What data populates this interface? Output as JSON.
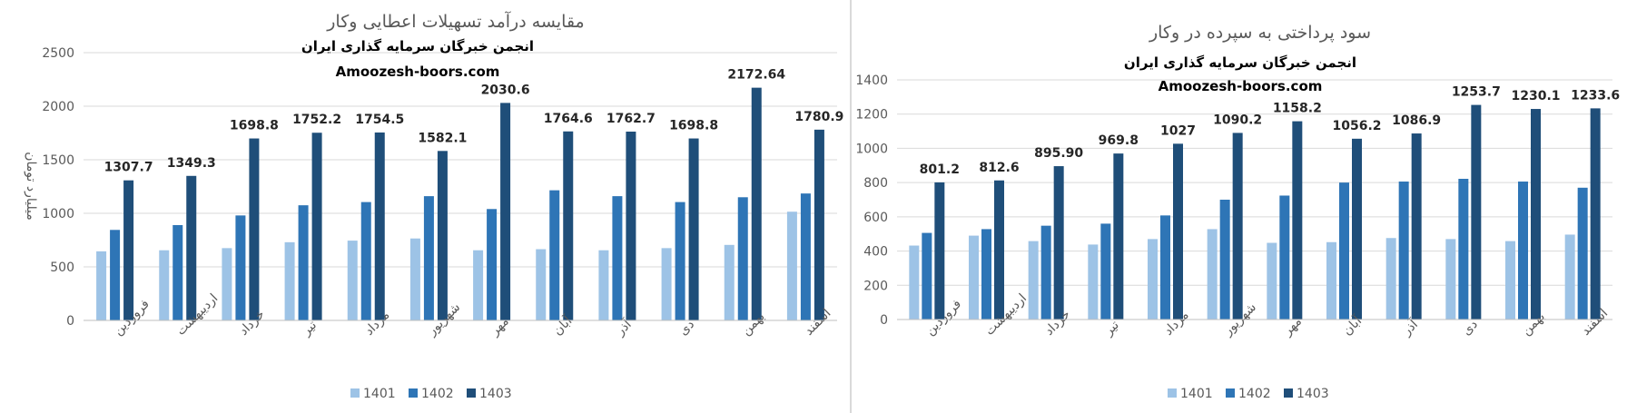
{
  "chart_data": [
    {
      "type": "bar",
      "title": "مقایسه درآمد تسهیلات اعطایی وکار",
      "watermark_line1": "انجمن خبرگان سرمایه گذاری ایران",
      "watermark_line2": "Amoozesh-boors.com",
      "ylabel": "میلیارد تومان",
      "xlabel": "",
      "ylim": [
        0,
        2500
      ],
      "yticks": [
        0,
        500,
        1000,
        1500,
        2000,
        2500
      ],
      "grid": true,
      "legend_position": "bottom",
      "categories": [
        "فروردین",
        "اردیبهشت",
        "خرداد",
        "تیر",
        "مرداد",
        "شهریور",
        "مهر",
        "آبان",
        "آذر",
        "دی",
        "بهمن",
        "اسفند"
      ],
      "series": [
        {
          "name": "1401",
          "color": "#9dc3e6",
          "values": [
            645,
            655,
            675,
            730,
            745,
            765,
            655,
            665,
            655,
            675,
            705,
            1015
          ]
        },
        {
          "name": "1402",
          "color": "#2e75b6",
          "values": [
            845,
            890,
            980,
            1075,
            1105,
            1160,
            1040,
            1215,
            1160,
            1105,
            1150,
            1185
          ]
        },
        {
          "name": "1403",
          "color": "#1f4e79",
          "values": [
            1307.7,
            1349.3,
            1698.8,
            1752.2,
            1754.5,
            1582.1,
            2030.6,
            1764.6,
            1762.7,
            1698.8,
            2172.64,
            1780.9
          ]
        }
      ],
      "data_labels": [
        "1307.7",
        "1349.3",
        "1698.8",
        "1752.2",
        "1754.5",
        "1582.1",
        "2030.6",
        "1764.6",
        "1762.7",
        "1698.8",
        "2172.64",
        "1780.9"
      ]
    },
    {
      "type": "bar",
      "title": "سود پرداختی به سپرده در وکار",
      "watermark_line1": "انجمن خبرگان سرمایه گذاری ایران",
      "watermark_line2": "Amoozesh-boors.com",
      "ylabel": "",
      "xlabel": "",
      "ylim": [
        0,
        1400
      ],
      "yticks": [
        0,
        200,
        400,
        600,
        800,
        1000,
        1200,
        1400
      ],
      "grid": true,
      "legend_position": "bottom",
      "categories": [
        "فروردین",
        "اردیبهشت",
        "خرداد",
        "تیر",
        "مرداد",
        "شهریور",
        "مهر",
        "آبان",
        "آذر",
        "دی",
        "بهمن",
        "اسفند"
      ],
      "series": [
        {
          "name": "1401",
          "color": "#9dc3e6",
          "values": [
            432,
            490,
            458,
            438,
            470,
            528,
            448,
            452,
            476,
            470,
            458,
            496
          ]
        },
        {
          "name": "1402",
          "color": "#2e75b6",
          "values": [
            506,
            528,
            548,
            560,
            608,
            700,
            724,
            800,
            806,
            822,
            806,
            770
          ]
        },
        {
          "name": "1403",
          "color": "#1f4e79",
          "values": [
            801.2,
            812.6,
            895.9,
            969.8,
            1027,
            1090.2,
            1158.2,
            1056.2,
            1086.9,
            1253.7,
            1230.1,
            1233.6
          ]
        }
      ],
      "data_labels": [
        "801.2",
        "812.6",
        "895.90",
        "969.8",
        "1027",
        "1090.2",
        "1158.2",
        "1056.2",
        "1086.9",
        "1253.7",
        "1230.1",
        "1233.6"
      ]
    }
  ]
}
